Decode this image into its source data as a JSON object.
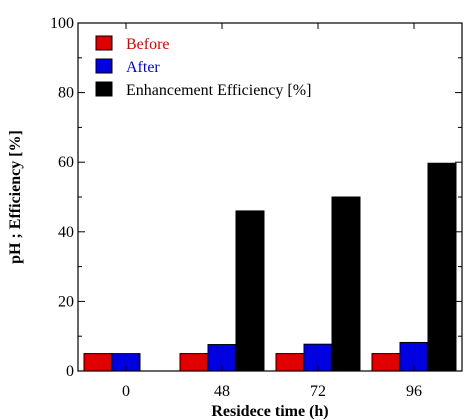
{
  "chart_data": {
    "type": "bar",
    "xlabel": "Residece time (h)",
    "ylabel": "pH ; Efficiency [%]",
    "ylim": [
      0,
      100
    ],
    "yticks": [
      0,
      20,
      40,
      60,
      80,
      100
    ],
    "categories": [
      "0",
      "48",
      "72",
      "96"
    ],
    "series": [
      {
        "name": "Before",
        "color": "#e00000",
        "values": [
          5.0,
          5.0,
          5.0,
          5.0
        ]
      },
      {
        "name": "After",
        "color": "#0000e0",
        "values": [
          5.0,
          7.6,
          7.7,
          8.2
        ]
      },
      {
        "name": "Enhancement Efficiency [%]",
        "color": "#000000",
        "values": [
          null,
          46.0,
          50.0,
          59.7
        ]
      }
    ],
    "legend_position": "top-left",
    "grid": false
  }
}
